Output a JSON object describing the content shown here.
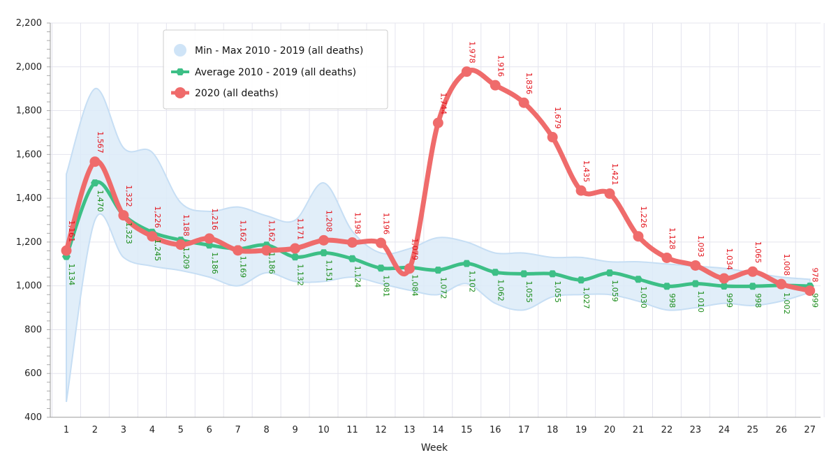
{
  "chart_data": {
    "type": "line",
    "xlabel": "Week",
    "ylabel": "",
    "ylim": [
      400,
      2200
    ],
    "yticks": [
      400,
      600,
      800,
      1000,
      1200,
      1400,
      1600,
      1800,
      2000,
      2200
    ],
    "ytick_labels": [
      "400",
      "600",
      "800",
      "1,000",
      "1,200",
      "1,400",
      "1,600",
      "1,800",
      "2,000",
      "2,200"
    ],
    "categories": [
      "1",
      "2",
      "3",
      "4",
      "5",
      "6",
      "7",
      "8",
      "9",
      "10",
      "11",
      "12",
      "13",
      "14",
      "15",
      "16",
      "17",
      "18",
      "19",
      "20",
      "21",
      "22",
      "23",
      "24",
      "25",
      "26",
      "27"
    ],
    "legend_position": "top-left",
    "series": [
      {
        "name": "Min - Max 2010 - 2019 (all deaths)",
        "type": "arearange",
        "color": "#cfe4f7",
        "low": [
          470,
          1300,
          1130,
          1090,
          1070,
          1040,
          1000,
          1060,
          1020,
          1020,
          1040,
          1010,
          980,
          960,
          1010,
          920,
          890,
          950,
          960,
          960,
          930,
          890,
          900,
          920,
          910,
          930,
          970
        ],
        "high": [
          1510,
          1900,
          1630,
          1610,
          1380,
          1340,
          1360,
          1320,
          1300,
          1470,
          1250,
          1150,
          1170,
          1220,
          1200,
          1150,
          1150,
          1130,
          1130,
          1110,
          1110,
          1100,
          1090,
          1080,
          1060,
          1040,
          1030
        ]
      },
      {
        "name": "Average 2010 - 2019 (all deaths)",
        "color": "#3dbf86",
        "label_color": "#1a8c1a",
        "values": [
          1134,
          1470,
          1323,
          1245,
          1209,
          1186,
          1169,
          1186,
          1132,
          1151,
          1124,
          1081,
          1084,
          1072,
          1102,
          1062,
          1055,
          1055,
          1027,
          1059,
          1030,
          998,
          1010,
          999,
          998,
          1002,
          999
        ],
        "labels": [
          "1,134",
          "1,470",
          "1,323",
          "1,245",
          "1,209",
          "1,186",
          "1,169",
          "1,186",
          "1,132",
          "1,151",
          "1,124",
          "1,081",
          "1,084",
          "1,072",
          "1,102",
          "1,062",
          "1,055",
          "1,055",
          "1,027",
          "1,059",
          "1,030",
          "998",
          "1,010",
          "999",
          "998",
          "1,002",
          "999"
        ]
      },
      {
        "name": "2020 (all deaths)",
        "color": "#ef6b6b",
        "label_color": "#e3131b",
        "values": [
          1161,
          1567,
          1322,
          1226,
          1188,
          1216,
          1162,
          1162,
          1171,
          1208,
          1198,
          1196,
          1079,
          1744,
          1978,
          1916,
          1836,
          1679,
          1435,
          1421,
          1226,
          1128,
          1093,
          1034,
          1065,
          1008,
          978
        ],
        "labels": [
          "1,161",
          "1,567",
          "1,322",
          "1,226",
          "1,188",
          "1,216",
          "1,162",
          "1,162",
          "1,171",
          "1,208",
          "1,198",
          "1,196",
          "1,079",
          "1,744",
          "1,978",
          "1,916",
          "1,836",
          "1,679",
          "1,435",
          "1,421",
          "1,226",
          "1,128",
          "1,093",
          "1,034",
          "1,065",
          "1,008",
          "978"
        ]
      }
    ]
  }
}
